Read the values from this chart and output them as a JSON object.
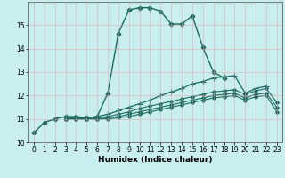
{
  "xlabel": "Humidex (Indice chaleur)",
  "bg_color": "#c8eef0",
  "line_color": "#1a6b60",
  "xlim": [
    -0.5,
    23.5
  ],
  "ylim": [
    10.0,
    16.0
  ],
  "yticks": [
    10,
    11,
    12,
    13,
    14,
    15
  ],
  "xticks": [
    0,
    1,
    2,
    3,
    4,
    5,
    6,
    7,
    8,
    9,
    10,
    11,
    12,
    13,
    14,
    15,
    16,
    17,
    18,
    19,
    20,
    21,
    22,
    23
  ],
  "curves": [
    {
      "x": [
        0,
        1,
        2,
        3,
        4,
        5,
        6,
        7,
        8,
        9,
        10,
        11,
        12,
        13,
        14,
        15,
        16,
        17,
        18
      ],
      "y": [
        10.4,
        10.85,
        11.0,
        11.1,
        11.1,
        11.05,
        11.1,
        12.1,
        14.65,
        15.65,
        15.75,
        15.75,
        15.6,
        15.05,
        15.05,
        15.4,
        14.05,
        13.0,
        12.75
      ],
      "style": "-",
      "marker": "D",
      "markersize": 2.5,
      "linewidth": 1.0
    },
    {
      "x": [
        3,
        4,
        5,
        6,
        7,
        8,
        9,
        10,
        11,
        12,
        13,
        14,
        15,
        16,
        17,
        18,
        19,
        20,
        21,
        22
      ],
      "y": [
        11.05,
        11.05,
        11.05,
        11.1,
        11.2,
        11.35,
        11.5,
        11.65,
        11.8,
        12.0,
        12.15,
        12.3,
        12.5,
        12.6,
        12.75,
        12.8,
        12.85,
        12.1,
        12.3,
        12.4
      ],
      "style": "-",
      "marker": "+",
      "markersize": 4,
      "linewidth": 0.9
    },
    {
      "x": [
        3,
        4,
        5,
        6,
        7,
        8,
        9,
        10,
        11,
        12,
        13,
        14,
        15,
        16,
        17,
        18,
        19,
        20,
        21,
        22,
        23
      ],
      "y": [
        11.0,
        11.0,
        11.0,
        11.05,
        11.1,
        11.2,
        11.3,
        11.45,
        11.55,
        11.65,
        11.75,
        11.85,
        11.95,
        12.05,
        12.15,
        12.2,
        12.25,
        12.05,
        12.2,
        12.3,
        11.7
      ],
      "style": "-",
      "marker": "D",
      "markersize": 2,
      "linewidth": 0.8
    },
    {
      "x": [
        3,
        4,
        5,
        6,
        7,
        8,
        9,
        10,
        11,
        12,
        13,
        14,
        15,
        16,
        17,
        18,
        19,
        20,
        21,
        22,
        23
      ],
      "y": [
        11.0,
        11.0,
        11.0,
        11.0,
        11.05,
        11.1,
        11.2,
        11.3,
        11.4,
        11.5,
        11.6,
        11.7,
        11.8,
        11.9,
        12.0,
        12.05,
        12.1,
        11.9,
        12.05,
        12.1,
        11.5
      ],
      "style": "-",
      "marker": "D",
      "markersize": 2,
      "linewidth": 0.8
    },
    {
      "x": [
        3,
        4,
        5,
        6,
        7,
        8,
        9,
        10,
        11,
        12,
        13,
        14,
        15,
        16,
        17,
        18,
        19,
        20,
        21,
        22,
        23
      ],
      "y": [
        11.0,
        11.0,
        11.0,
        11.0,
        11.0,
        11.05,
        11.1,
        11.2,
        11.3,
        11.4,
        11.5,
        11.6,
        11.7,
        11.8,
        11.9,
        11.95,
        12.0,
        11.8,
        11.95,
        12.0,
        11.3
      ],
      "style": "-",
      "marker": "D",
      "markersize": 2,
      "linewidth": 0.8
    }
  ]
}
